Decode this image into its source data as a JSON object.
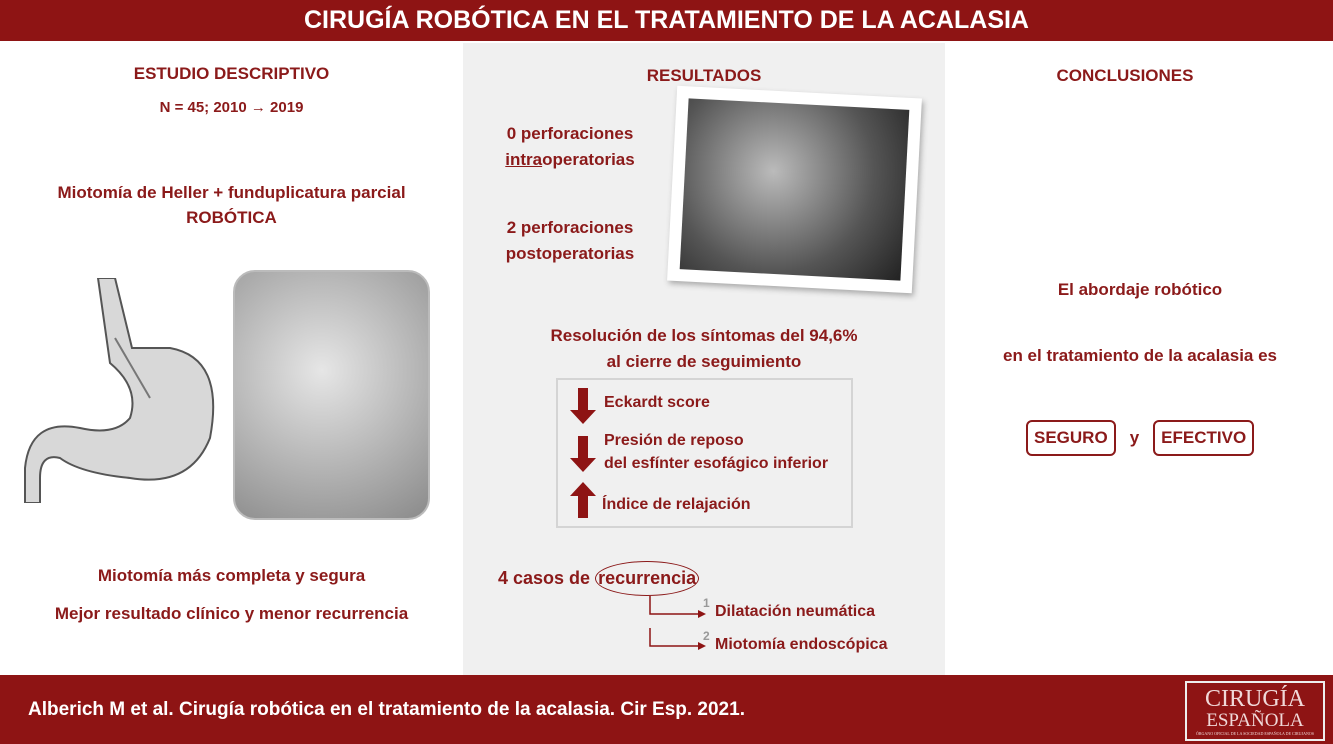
{
  "header": {
    "title": "CIRUGÍA ROBÓTICA EN EL TRATAMIENTO DE LA ACALASIA"
  },
  "left": {
    "heading": "ESTUDIO DESCRIPTIVO",
    "sample": "N = 45; 2010 → 2019",
    "procedure_line1": "Miotomía de Heller +  funduplicatura parcial",
    "procedure_line2": "ROBÓTICA",
    "benefit1": "Miotomía más completa y segura",
    "benefit2": "Mejor resultado clínico y menor recurrencia"
  },
  "middle": {
    "heading": "RESULTADOS",
    "perf_intra_line1": "0 perforaciones",
    "perf_intra_prefix": "intra",
    "perf_intra_suffix": "operatorias",
    "perf_post_line1": "2 perforaciones",
    "perf_post_line2": "postoperatorias",
    "resolution_line1": "Resolución de los síntomas del 94,6%",
    "resolution_line2": "al cierre de seguimiento",
    "outcomes": [
      {
        "direction": "down",
        "label": "Eckardt score"
      },
      {
        "direction": "down",
        "label_line1": "Presión de reposo",
        "label_line2": "del esfínter esofágico inferior"
      },
      {
        "direction": "up",
        "label": "Índice de relajación"
      }
    ],
    "recurrence_prefix": "4 casos de ",
    "recurrence_word": "recurrencia",
    "treatments": [
      {
        "num": "1",
        "label": "Dilatación neumática"
      },
      {
        "num": "2",
        "label": "Miotomía endoscópica"
      }
    ]
  },
  "right": {
    "heading": "CONCLUSIONES",
    "line1": "El abordaje robótico",
    "line2": "en el tratamiento de la acalasia es",
    "badge1": "SEGURO",
    "connector": "y",
    "badge2": "EFECTIVO"
  },
  "footer": {
    "citation": "Alberich M et al. Cirugía robótica en el tratamiento de la acalasia. Cir Esp. 2021."
  },
  "logo": {
    "line1": "CIRUGÍA",
    "line2": "ESPAÑOLA",
    "tagline": "ÓRGANO OFICIAL DE LA SOCIEDAD ESPAÑOLA DE CIRUJANOS"
  },
  "colors": {
    "accent": "#8e1414",
    "panel": "#f0f0f0"
  }
}
